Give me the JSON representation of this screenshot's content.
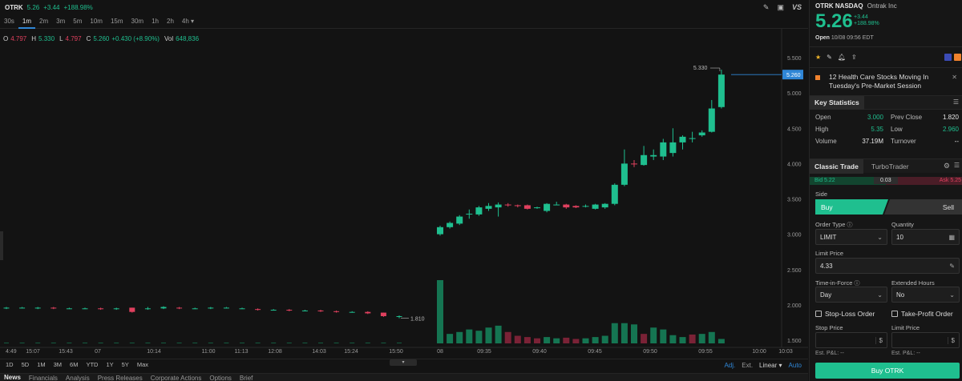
{
  "header": {
    "symbol": "OTRK",
    "price": "5.26",
    "change": "+3.44",
    "change_pct": "+188.98%"
  },
  "timeframes": [
    "30s",
    "1m",
    "2m",
    "3m",
    "5m",
    "10m",
    "15m",
    "30m",
    "1h",
    "2h",
    "4h ▾"
  ],
  "active_timeframe_index": 1,
  "ohlc": {
    "o_label": "O",
    "o": "4.797",
    "h_label": "H",
    "h": "5.330",
    "l_label": "L",
    "l": "4.797",
    "c_label": "C",
    "c": "5.260",
    "c_change": "+0.430 (+8.90%)",
    "vol_label": "Vol",
    "vol": "648,836"
  },
  "chart_data": {
    "type": "candlestick",
    "y_ticks": [
      "5.500",
      "5.000",
      "4.500",
      "4.000",
      "3.500",
      "3.000",
      "2.500",
      "2.000",
      "1.500"
    ],
    "y_range": [
      1.5,
      5.5
    ],
    "x_ticks": [
      "4:49",
      "15:07",
      "15:43",
      "07",
      "10:14",
      "11:00",
      "11:13",
      "12:08",
      "14:03",
      "15:24",
      "15:50",
      "08",
      "09:35",
      "09:40",
      "09:45",
      "09:50",
      "09:55",
      "10:00",
      "10:03"
    ],
    "last_price_label": "5.260",
    "high_marker": "5.330",
    "low_marker": "1.810",
    "candles_prev_day": [
      {
        "o": 1.95,
        "c": 1.96,
        "h": 1.97,
        "l": 1.94
      },
      {
        "o": 1.96,
        "c": 1.96,
        "h": 1.97,
        "l": 1.95
      },
      {
        "o": 1.95,
        "c": 1.96,
        "h": 1.97,
        "l": 1.94
      },
      {
        "o": 1.96,
        "c": 1.95,
        "h": 1.97,
        "l": 1.94
      },
      {
        "o": 1.95,
        "c": 1.95,
        "h": 1.96,
        "l": 1.94
      },
      {
        "o": 1.95,
        "c": 1.95,
        "h": 1.96,
        "l": 1.94
      },
      {
        "o": 1.95,
        "c": 1.94,
        "h": 1.96,
        "l": 1.93
      },
      {
        "o": 1.94,
        "c": 1.95,
        "h": 1.96,
        "l": 1.93
      },
      {
        "o": 1.96,
        "c": 1.9,
        "h": 1.96,
        "l": 1.89
      },
      {
        "o": 1.94,
        "c": 1.95,
        "h": 1.97,
        "l": 1.93
      },
      {
        "o": 1.95,
        "c": 1.97,
        "h": 1.98,
        "l": 1.94
      },
      {
        "o": 1.96,
        "c": 1.95,
        "h": 1.97,
        "l": 1.94
      },
      {
        "o": 1.95,
        "c": 1.95,
        "h": 1.96,
        "l": 1.94
      },
      {
        "o": 1.95,
        "c": 1.96,
        "h": 1.97,
        "l": 1.94
      },
      {
        "o": 1.96,
        "c": 1.96,
        "h": 1.97,
        "l": 1.95
      },
      {
        "o": 1.95,
        "c": 1.95,
        "h": 1.96,
        "l": 1.94
      },
      {
        "o": 1.94,
        "c": 1.93,
        "h": 1.95,
        "l": 1.92
      },
      {
        "o": 1.93,
        "c": 1.93,
        "h": 1.94,
        "l": 1.92
      },
      {
        "o": 1.93,
        "c": 1.92,
        "h": 1.94,
        "l": 1.91
      },
      {
        "o": 1.92,
        "c": 1.92,
        "h": 1.93,
        "l": 1.91
      },
      {
        "o": 1.92,
        "c": 1.91,
        "h": 1.93,
        "l": 1.9
      },
      {
        "o": 1.91,
        "c": 1.9,
        "h": 1.92,
        "l": 1.89
      },
      {
        "o": 1.9,
        "c": 1.9,
        "h": 1.91,
        "l": 1.89
      },
      {
        "o": 1.9,
        "c": 1.88,
        "h": 1.91,
        "l": 1.87
      },
      {
        "o": 1.89,
        "c": 1.84,
        "h": 1.89,
        "l": 1.83
      },
      {
        "o": 1.84,
        "c": 1.84,
        "h": 1.85,
        "l": 1.81
      }
    ],
    "candles_today": [
      {
        "o": 3.0,
        "c": 3.1,
        "h": 3.12,
        "l": 2.98
      },
      {
        "o": 3.1,
        "c": 3.16,
        "h": 3.18,
        "l": 3.08
      },
      {
        "o": 3.15,
        "c": 3.25,
        "h": 3.27,
        "l": 3.13
      },
      {
        "o": 3.28,
        "c": 3.29,
        "h": 3.35,
        "l": 3.22
      },
      {
        "o": 3.28,
        "c": 3.38,
        "h": 3.4,
        "l": 3.26
      },
      {
        "o": 3.36,
        "c": 3.4,
        "h": 3.44,
        "l": 3.33
      },
      {
        "o": 3.38,
        "c": 3.42,
        "h": 3.45,
        "l": 3.25
      },
      {
        "o": 3.42,
        "c": 3.41,
        "h": 3.44,
        "l": 3.39
      },
      {
        "o": 3.41,
        "c": 3.4,
        "h": 3.42,
        "l": 3.38
      },
      {
        "o": 3.41,
        "c": 3.36,
        "h": 3.42,
        "l": 3.35
      },
      {
        "o": 3.37,
        "c": 3.38,
        "h": 3.39,
        "l": 3.36
      },
      {
        "o": 3.33,
        "c": 3.43,
        "h": 3.44,
        "l": 3.31
      },
      {
        "o": 3.42,
        "c": 3.42,
        "h": 3.46,
        "l": 3.41
      },
      {
        "o": 3.42,
        "c": 3.38,
        "h": 3.43,
        "l": 3.36
      },
      {
        "o": 3.4,
        "c": 3.38,
        "h": 3.41,
        "l": 3.37
      },
      {
        "o": 3.4,
        "c": 3.4,
        "h": 3.42,
        "l": 3.38
      },
      {
        "o": 3.36,
        "c": 3.42,
        "h": 3.43,
        "l": 3.35
      },
      {
        "o": 3.38,
        "c": 3.43,
        "h": 3.44,
        "l": 3.36
      },
      {
        "o": 3.43,
        "c": 3.7,
        "h": 3.72,
        "l": 3.41
      },
      {
        "o": 3.7,
        "c": 4.0,
        "h": 4.2,
        "l": 3.68
      },
      {
        "o": 4.0,
        "c": 3.99,
        "h": 4.05,
        "l": 3.95
      },
      {
        "o": 3.98,
        "c": 4.12,
        "h": 4.25,
        "l": 3.97
      },
      {
        "o": 4.1,
        "c": 4.12,
        "h": 4.2,
        "l": 4.05
      },
      {
        "o": 4.1,
        "c": 4.3,
        "h": 4.35,
        "l": 4.05
      },
      {
        "o": 4.15,
        "c": 4.3,
        "h": 4.5,
        "l": 4.1
      },
      {
        "o": 4.3,
        "c": 4.38,
        "h": 4.4,
        "l": 4.2
      },
      {
        "o": 4.35,
        "c": 4.36,
        "h": 4.45,
        "l": 4.3
      },
      {
        "o": 4.4,
        "c": 4.44,
        "h": 4.47,
        "l": 4.38
      },
      {
        "o": 4.45,
        "c": 4.78,
        "h": 4.9,
        "l": 4.44
      },
      {
        "o": 4.8,
        "c": 5.26,
        "h": 5.33,
        "l": 4.78
      }
    ],
    "volume_prev_day": [
      0.02,
      0.02,
      0.02,
      0.02,
      0.02,
      0.02,
      0.02,
      0.02,
      0.02,
      0.02,
      0.02,
      0.02,
      0.02,
      0.02,
      0.02,
      0.02,
      0.02,
      0.02,
      0.02,
      0.02,
      0.02,
      0.02,
      0.02,
      0.02,
      0.02,
      0.02
    ],
    "volume_today": [
      {
        "v": 1.0,
        "up": true
      },
      {
        "v": 0.15,
        "up": true
      },
      {
        "v": 0.18,
        "up": true
      },
      {
        "v": 0.22,
        "up": true
      },
      {
        "v": 0.2,
        "up": true
      },
      {
        "v": 0.25,
        "up": true
      },
      {
        "v": 0.28,
        "up": true
      },
      {
        "v": 0.18,
        "up": false
      },
      {
        "v": 0.12,
        "up": false
      },
      {
        "v": 0.1,
        "up": false
      },
      {
        "v": 0.08,
        "up": false
      },
      {
        "v": 0.1,
        "up": true
      },
      {
        "v": 0.08,
        "up": true
      },
      {
        "v": 0.09,
        "up": false
      },
      {
        "v": 0.07,
        "up": false
      },
      {
        "v": 0.08,
        "up": true
      },
      {
        "v": 0.1,
        "up": true
      },
      {
        "v": 0.12,
        "up": true
      },
      {
        "v": 0.32,
        "up": true
      },
      {
        "v": 0.32,
        "up": true
      },
      {
        "v": 0.3,
        "up": true
      },
      {
        "v": 0.15,
        "up": false
      },
      {
        "v": 0.25,
        "up": true
      },
      {
        "v": 0.22,
        "up": true
      },
      {
        "v": 0.13,
        "up": true
      },
      {
        "v": 0.1,
        "up": true
      },
      {
        "v": 0.14,
        "up": false
      },
      {
        "v": 0.15,
        "up": true
      },
      {
        "v": 0.18,
        "up": true
      },
      {
        "v": 0.07,
        "up": true
      }
    ]
  },
  "chart_toolbar": {
    "ranges": [
      "1D",
      "5D",
      "1M",
      "3M",
      "6M",
      "YTD",
      "1Y",
      "5Y",
      "Max"
    ],
    "adj": "Adj.",
    "ext": "Ext.",
    "scale": "Linear ▾",
    "auto": "Auto"
  },
  "bottom_tabs": [
    "News",
    "Financials",
    "Analysis",
    "Press Releases",
    "Corporate Actions",
    "Options",
    "Brief"
  ],
  "quote": {
    "title": "OTRK NASDAQ",
    "company": "Ontrak Inc",
    "price": "5.26",
    "change": "+3.44",
    "change_pct": "+188.98%",
    "open_label": "Open",
    "open_time": "10/08 09:56 EDT"
  },
  "news": {
    "headline": "12 Health Care Stocks Moving In Tuesday's Pre-Market Session"
  },
  "key_stats": {
    "tab": "Key Statistics",
    "rows": [
      {
        "l1": "Open",
        "v1": "3.000",
        "c1": "green",
        "l2": "Prev Close",
        "v2": "1.820",
        "c2": "white"
      },
      {
        "l1": "High",
        "v1": "5.35",
        "c1": "green",
        "l2": "Low",
        "v2": "2.960",
        "c2": "green"
      },
      {
        "l1": "Volume",
        "v1": "37.19M",
        "c1": "white",
        "l2": "Turnover",
        "v2": "--",
        "c2": "white"
      }
    ]
  },
  "trade": {
    "tab_classic": "Classic Trade",
    "tab_turbo": "TurboTrader",
    "bid": "Bid 5.22",
    "spread": "0.03",
    "ask": "Ask 5.25",
    "side_label": "Side",
    "buy": "Buy",
    "sell": "Sell",
    "order_type_label": "Order Type",
    "order_type": "LIMIT",
    "quantity_label": "Quantity",
    "quantity": "10",
    "limit_price_label": "Limit Price",
    "limit_price": "4.33",
    "tif_label": "Time-in-Force",
    "tif": "Day",
    "ext_hours_label": "Extended Hours",
    "ext_hours": "No",
    "stop_loss": "Stop-Loss Order",
    "take_profit": "Take-Profit Order",
    "stop_price_label": "Stop Price",
    "limit_price2_label": "Limit Price",
    "est_pl": "Est. P&L: --",
    "est_pl2": "Est. P&L: --",
    "submit": "Buy OTRK"
  },
  "colors": {
    "up": "#1fbf8f",
    "down": "#e0405e",
    "accent": "#2f86d6"
  },
  "icons": [
    "pencil-icon",
    "image-icon",
    "vs-icon",
    "gear-icon",
    "star-icon",
    "bell-icon",
    "close-icon",
    "menu-icon",
    "calculator-icon",
    "dollar-icon",
    "caret-down-icon",
    "info-icon"
  ]
}
